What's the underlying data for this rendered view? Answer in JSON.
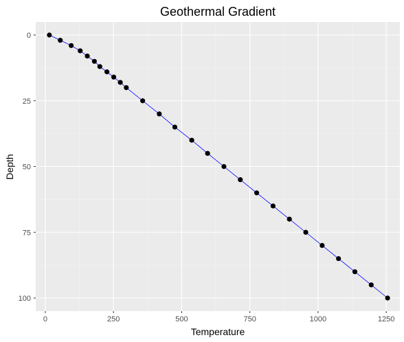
{
  "chart_data": {
    "type": "scatter",
    "title": "Geothermal Gradient",
    "xlabel": "Temperature",
    "ylabel": "Depth",
    "xlim": [
      -35,
      1300
    ],
    "ylim": [
      0,
      100
    ],
    "y_reversed": true,
    "xticks": [
      0,
      250,
      500,
      750,
      1000,
      1250
    ],
    "yticks": [
      0,
      25,
      50,
      75,
      100
    ],
    "grid": true,
    "legend": "none",
    "series": [
      {
        "line_color": "#0000ff",
        "point_color": "#000000",
        "x": [
          15,
          55,
          95,
          128,
          154,
          180,
          200,
          226,
          251,
          275,
          297,
          357,
          418,
          475,
          537,
          595,
          655,
          715,
          775,
          835,
          895,
          955,
          1015,
          1075,
          1135,
          1195,
          1255
        ],
        "y": [
          0,
          2,
          4,
          6,
          8,
          10,
          12,
          14,
          16,
          18,
          20,
          25,
          30,
          35,
          40,
          45,
          50,
          55,
          60,
          65,
          70,
          75,
          80,
          85,
          90,
          95,
          100
        ]
      }
    ]
  },
  "panel_colors": {
    "background": "#ebebeb",
    "major_grid": "#ffffff",
    "minor_grid": "#f5f5f5"
  }
}
